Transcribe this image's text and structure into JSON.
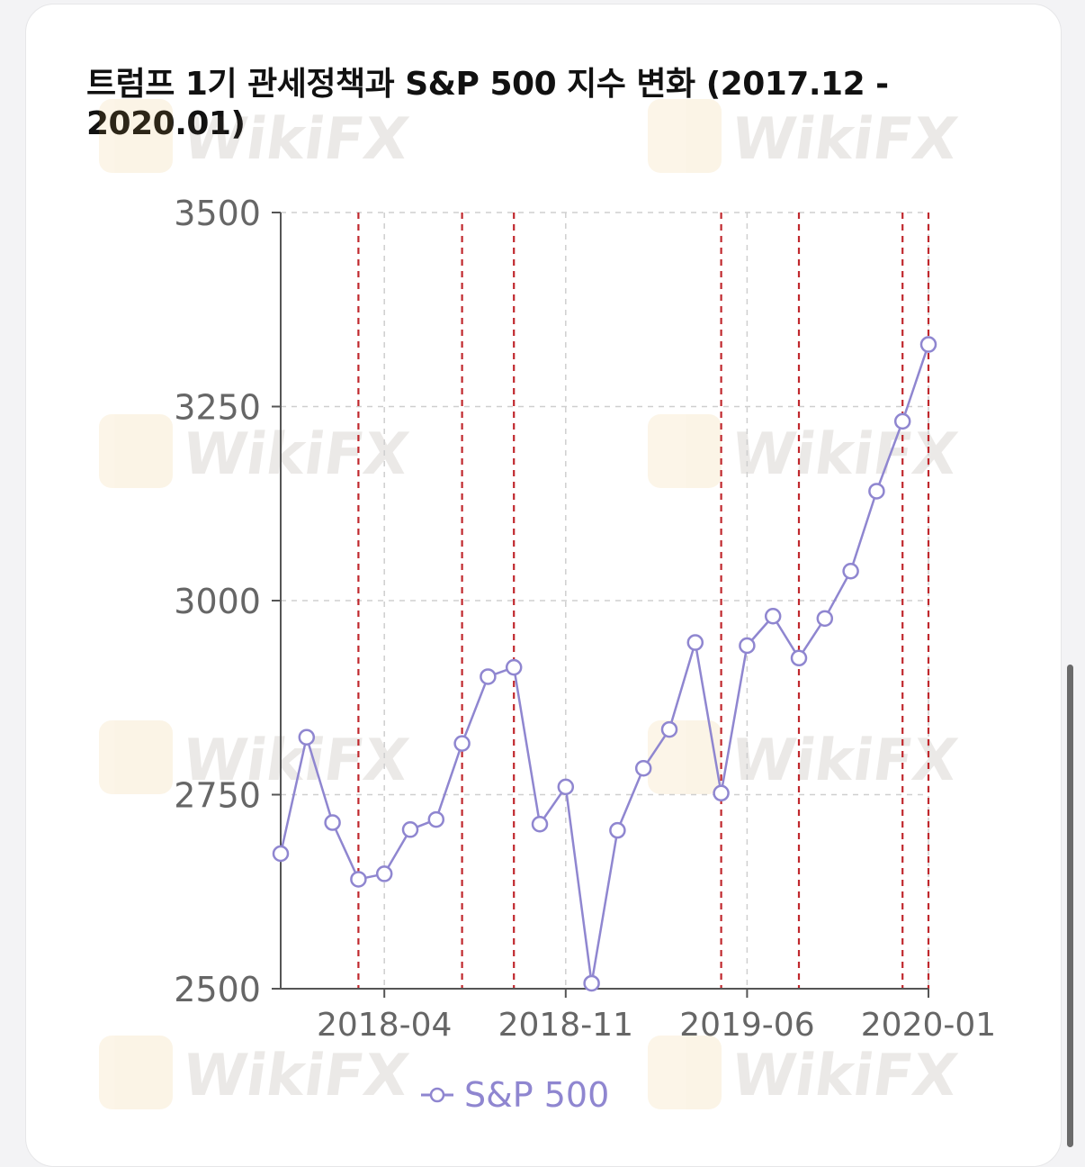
{
  "chart_data": {
    "type": "line",
    "title": "트럼프 1기 관세정책과 S&P 500 지수 변화 (2017.12 - 2020.01)",
    "xlabel": "",
    "ylabel": "",
    "ylim": [
      2500,
      3500
    ],
    "yticks": [
      2500,
      2750,
      3000,
      3250,
      3500
    ],
    "x_range": [
      "2017-12",
      "2020-01"
    ],
    "xticks": [
      "2018-04",
      "2018-11",
      "2019-06",
      "2020-01"
    ],
    "grid": true,
    "legend_position": "bottom",
    "x": [
      "2017-12",
      "2018-01",
      "2018-02",
      "2018-03",
      "2018-04",
      "2018-05",
      "2018-06",
      "2018-07",
      "2018-08",
      "2018-09",
      "2018-10",
      "2018-11",
      "2018-12",
      "2019-01",
      "2019-02",
      "2019-03",
      "2019-04",
      "2019-05",
      "2019-06",
      "2019-07",
      "2019-08",
      "2019-09",
      "2019-10",
      "2019-11",
      "2019-12",
      "2020-01"
    ],
    "series": [
      {
        "name": "S&P 500",
        "color": "#8f86d0",
        "values": [
          2674,
          2824,
          2714,
          2641,
          2648,
          2705,
          2718,
          2816,
          2902,
          2914,
          2712,
          2760,
          2507,
          2704,
          2784,
          2834,
          2946,
          2752,
          2942,
          2980,
          2926,
          2977,
          3038,
          3141,
          3231,
          3330
        ]
      }
    ],
    "event_lines": {
      "color": "#c0282d",
      "x": [
        "2018-03",
        "2018-07",
        "2018-09",
        "2019-05",
        "2019-08",
        "2019-12",
        "2020-01"
      ]
    },
    "watermark": "WikiFX"
  }
}
